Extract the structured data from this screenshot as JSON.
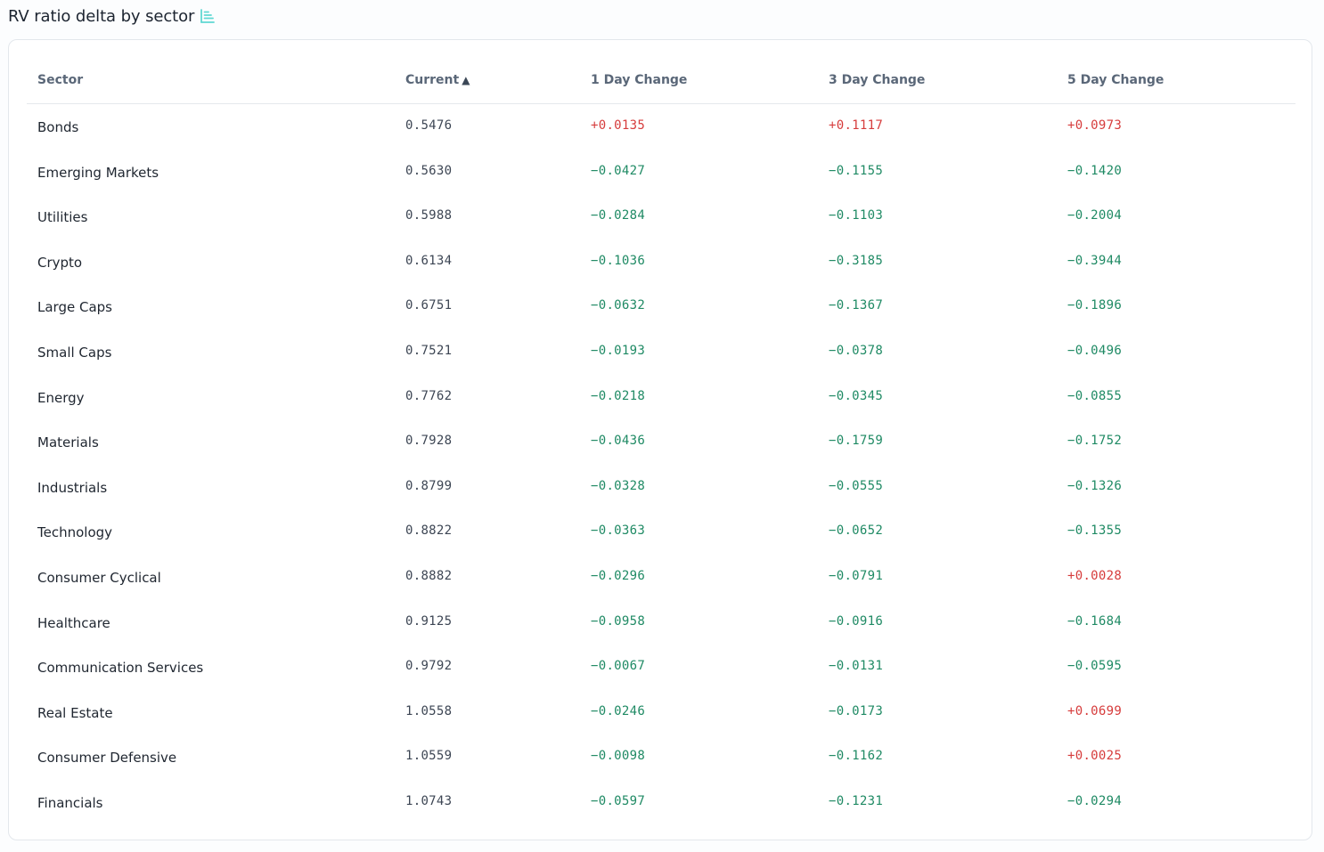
{
  "header": {
    "title": "RV ratio delta by sector",
    "title_icon": "bar-list-icon",
    "icon_color": "#5fd8d2"
  },
  "table": {
    "columns": [
      "Sector",
      "Current",
      "1 Day Change",
      "3 Day Change",
      "5 Day Change"
    ],
    "sort": {
      "column": "Current",
      "direction": "ascending",
      "indicator": "▲"
    },
    "colors": {
      "positive": "#d63c3c",
      "negative": "#1f8a64"
    },
    "rows": [
      {
        "sector": "Bonds",
        "current": "0.5476",
        "d1": "+0.0135",
        "d3": "+0.1117",
        "d5": "+0.0973"
      },
      {
        "sector": "Emerging Markets",
        "current": "0.5630",
        "d1": "−0.0427",
        "d3": "−0.1155",
        "d5": "−0.1420"
      },
      {
        "sector": "Utilities",
        "current": "0.5988",
        "d1": "−0.0284",
        "d3": "−0.1103",
        "d5": "−0.2004"
      },
      {
        "sector": "Crypto",
        "current": "0.6134",
        "d1": "−0.1036",
        "d3": "−0.3185",
        "d5": "−0.3944"
      },
      {
        "sector": "Large Caps",
        "current": "0.6751",
        "d1": "−0.0632",
        "d3": "−0.1367",
        "d5": "−0.1896"
      },
      {
        "sector": "Small Caps",
        "current": "0.7521",
        "d1": "−0.0193",
        "d3": "−0.0378",
        "d5": "−0.0496"
      },
      {
        "sector": "Energy",
        "current": "0.7762",
        "d1": "−0.0218",
        "d3": "−0.0345",
        "d5": "−0.0855"
      },
      {
        "sector": "Materials",
        "current": "0.7928",
        "d1": "−0.0436",
        "d3": "−0.1759",
        "d5": "−0.1752"
      },
      {
        "sector": "Industrials",
        "current": "0.8799",
        "d1": "−0.0328",
        "d3": "−0.0555",
        "d5": "−0.1326"
      },
      {
        "sector": "Technology",
        "current": "0.8822",
        "d1": "−0.0363",
        "d3": "−0.0652",
        "d5": "−0.1355"
      },
      {
        "sector": "Consumer Cyclical",
        "current": "0.8882",
        "d1": "−0.0296",
        "d3": "−0.0791",
        "d5": "+0.0028"
      },
      {
        "sector": "Healthcare",
        "current": "0.9125",
        "d1": "−0.0958",
        "d3": "−0.0916",
        "d5": "−0.1684"
      },
      {
        "sector": "Communication Services",
        "current": "0.9792",
        "d1": "−0.0067",
        "d3": "−0.0131",
        "d5": "−0.0595"
      },
      {
        "sector": "Real Estate",
        "current": "1.0558",
        "d1": "−0.0246",
        "d3": "−0.0173",
        "d5": "+0.0699"
      },
      {
        "sector": "Consumer Defensive",
        "current": "1.0559",
        "d1": "−0.0098",
        "d3": "−0.1162",
        "d5": "+0.0025"
      },
      {
        "sector": "Financials",
        "current": "1.0743",
        "d1": "−0.0597",
        "d3": "−0.1231",
        "d5": "−0.0294"
      }
    ]
  }
}
